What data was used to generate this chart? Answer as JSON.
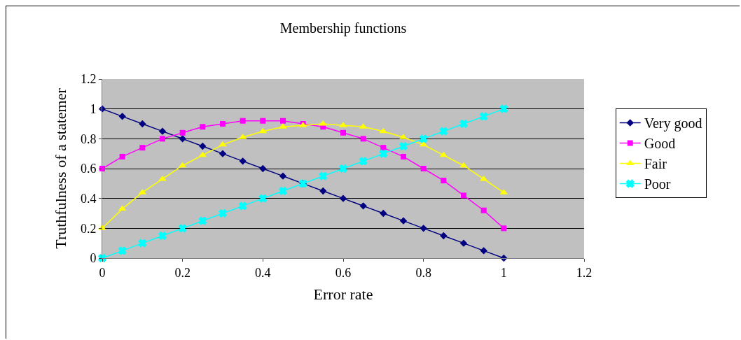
{
  "chart_data": {
    "type": "line",
    "title": "Membership functions",
    "xlabel": "Error rate",
    "ylabel": "Truthfulness of a statemer",
    "x": [
      0,
      0.05,
      0.1,
      0.15,
      0.2,
      0.25,
      0.3,
      0.35,
      0.4,
      0.45,
      0.5,
      0.55,
      0.6,
      0.65,
      0.7,
      0.75,
      0.8,
      0.85,
      0.9,
      0.95,
      1
    ],
    "series": [
      {
        "name": "Very good",
        "color": "#000080",
        "marker": "diamond",
        "values": [
          1,
          0.95,
          0.9,
          0.85,
          0.8,
          0.75,
          0.7,
          0.65,
          0.6,
          0.55,
          0.5,
          0.45,
          0.4,
          0.35,
          0.3,
          0.25,
          0.2,
          0.15,
          0.1,
          0.05,
          0
        ]
      },
      {
        "name": "Good",
        "color": "#ff00ff",
        "marker": "square",
        "values": [
          0.6,
          0.68,
          0.74,
          0.8,
          0.84,
          0.88,
          0.9,
          0.92,
          0.92,
          0.92,
          0.9,
          0.88,
          0.84,
          0.8,
          0.74,
          0.68,
          0.6,
          0.52,
          0.42,
          0.32,
          0.2
        ]
      },
      {
        "name": "Fair",
        "color": "#ffff00",
        "marker": "triangle",
        "values": [
          0.2,
          0.33,
          0.44,
          0.53,
          0.62,
          0.69,
          0.76,
          0.81,
          0.85,
          0.88,
          0.89,
          0.9,
          0.89,
          0.88,
          0.85,
          0.81,
          0.76,
          0.69,
          0.62,
          0.53,
          0.44
        ]
      },
      {
        "name": "Poor",
        "color": "#00ffff",
        "marker": "cross",
        "values": [
          0,
          0.05,
          0.1,
          0.15,
          0.2,
          0.25,
          0.3,
          0.35,
          0.4,
          0.45,
          0.5,
          0.55,
          0.6,
          0.65,
          0.7,
          0.75,
          0.8,
          0.85,
          0.9,
          0.95,
          1
        ]
      }
    ],
    "xlim": [
      0,
      1.2
    ],
    "xticks": [
      0,
      0.2,
      0.4,
      0.6,
      0.8,
      1,
      1.2
    ],
    "ylim": [
      0,
      1.2
    ],
    "yticks": [
      0,
      0.2,
      0.4,
      0.6,
      0.8,
      1,
      1.2
    ],
    "grid": "y",
    "legend": "right",
    "line_style": "solid"
  }
}
